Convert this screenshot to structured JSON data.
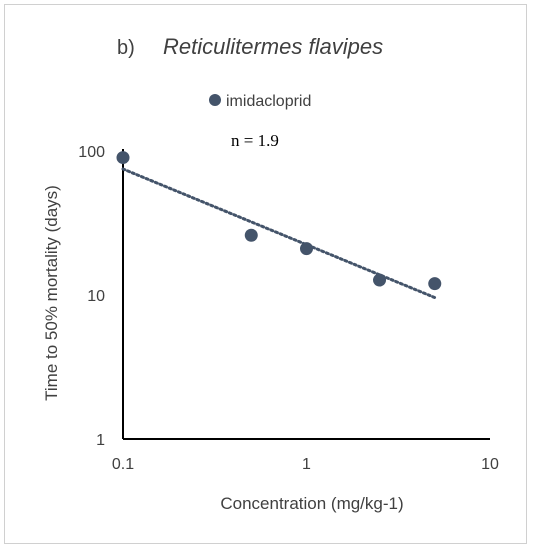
{
  "chart_data": {
    "type": "scatter",
    "panel_label": "b)",
    "title": "Reticulitermes flavipes",
    "xlabel": "Concentration (mg/kg-1)",
    "ylabel": "Time to 50% mortality (days)",
    "x_scale": "log",
    "y_scale": "log",
    "xlim": [
      0.1,
      10
    ],
    "ylim": [
      1,
      100
    ],
    "x_ticks": [
      0.1,
      1,
      10
    ],
    "x_tick_labels": [
      "0.1",
      "1",
      "10"
    ],
    "y_ticks": [
      1,
      10,
      100
    ],
    "y_tick_labels": [
      "1",
      "10",
      "100"
    ],
    "grid": false,
    "legend_position": "top-center",
    "series": [
      {
        "name": "imidacloprid",
        "color": "#44546a",
        "x": [
          0.1,
          0.5,
          1,
          2.5,
          5
        ],
        "y": [
          90,
          26,
          21,
          12.7,
          12
        ]
      }
    ],
    "trendline": {
      "style": "dotted",
      "color": "#44546a",
      "x": [
        0.1,
        5
      ],
      "y": [
        75,
        9.6
      ]
    },
    "annotation": "n = 1.9"
  }
}
